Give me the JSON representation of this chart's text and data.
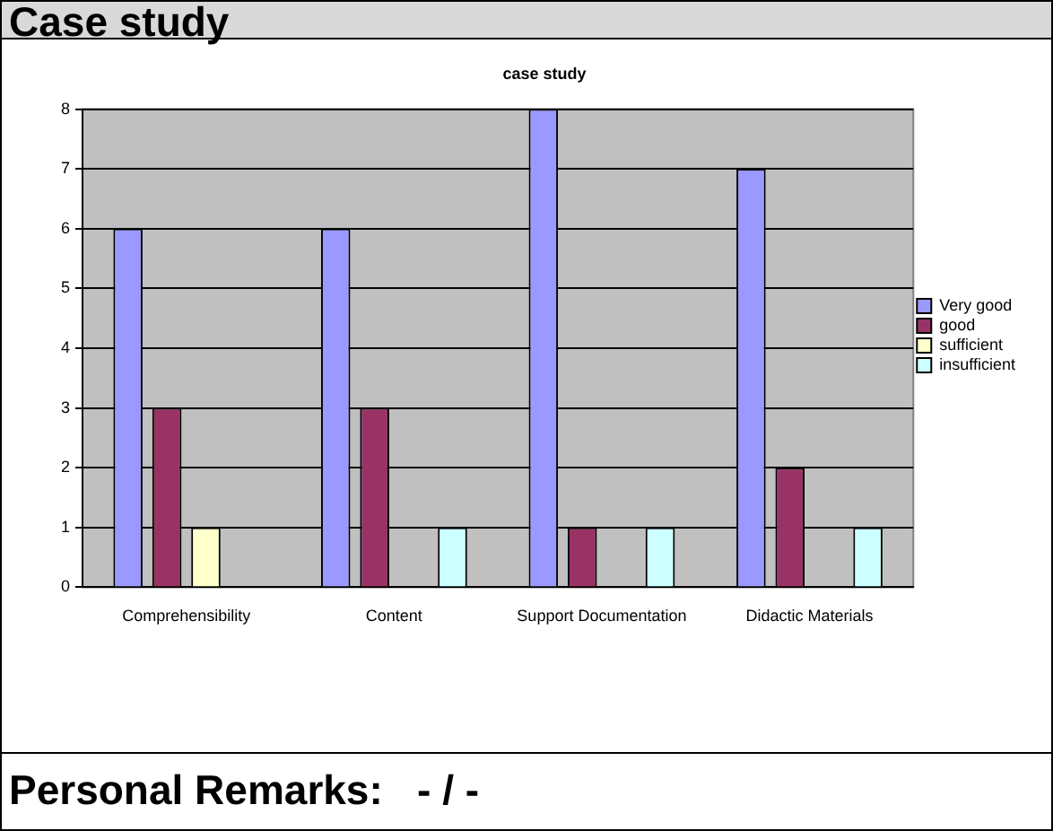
{
  "chart_data": {
    "type": "bar",
    "title": "case study",
    "categories": [
      "Comprehensibility",
      "Content",
      "Support Documentation",
      "Didactic Materials"
    ],
    "series": [
      {
        "name": "Very good",
        "color": "#9999ff",
        "values": [
          6,
          6,
          8,
          7
        ]
      },
      {
        "name": "good",
        "color": "#993366",
        "values": [
          3,
          3,
          1,
          2
        ]
      },
      {
        "name": "sufficient",
        "color": "#ffffcc",
        "values": [
          1,
          0,
          0,
          0
        ]
      },
      {
        "name": "insufficient",
        "color": "#ccffff",
        "values": [
          0,
          1,
          1,
          1
        ]
      }
    ],
    "ylim": [
      0,
      8
    ],
    "yticks": [
      0,
      1,
      2,
      3,
      4,
      5,
      6,
      7,
      8
    ],
    "grid": "y",
    "legend": "right",
    "annotations": [
      "Case study",
      "Personal Remarks:   - / -"
    ]
  }
}
